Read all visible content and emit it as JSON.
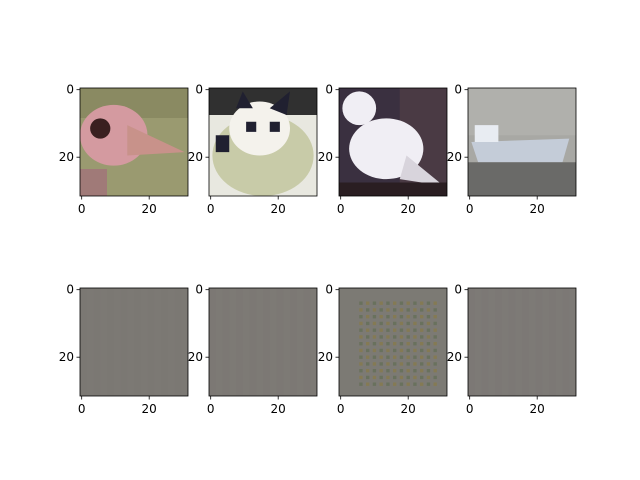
{
  "chart_data": {
    "type": "image-grid",
    "rows": 2,
    "cols": 4,
    "x_ticks": [
      0,
      20
    ],
    "y_ticks": [
      0,
      20
    ],
    "xlim": [
      -0.5,
      31.5
    ],
    "ylim": [
      31.5,
      -0.5
    ],
    "panels": [
      {
        "subject": "ostrich-head",
        "palette": {
          "bg": "#9a9a70",
          "main": "#d49aa0",
          "dark": "#3a2020",
          "light": "#c8c8b0"
        }
      },
      {
        "subject": "cat-face",
        "palette": {
          "bg": "#e8e8e0",
          "main": "#f4f2ec",
          "dark": "#202030",
          "light": "#c8cba8"
        }
      },
      {
        "subject": "white-bird",
        "palette": {
          "bg": "#3a3040",
          "main": "#f0eef4",
          "dark": "#2a1e22",
          "light": "#d8d4dc"
        }
      },
      {
        "subject": "boat",
        "palette": {
          "bg": "#a8a8a4",
          "main": "#c4ccd8",
          "dark": "#6a6a68",
          "light": "#e8ecf2"
        }
      },
      {
        "subject": "gray-flat",
        "palette": {
          "bg": "#7c7974",
          "main": "#7a7772",
          "dark": "#77746f",
          "light": "#807d78"
        }
      },
      {
        "subject": "gray-flat",
        "palette": {
          "bg": "#7d7a75",
          "main": "#7b7873",
          "dark": "#787570",
          "light": "#817e79"
        }
      },
      {
        "subject": "gray-dotted",
        "palette": {
          "bg": "#7c7a74",
          "main": "#8a7a3a",
          "dark": "#5a6a4a",
          "light": "#847f70"
        }
      },
      {
        "subject": "gray-flat",
        "palette": {
          "bg": "#7d7a76",
          "main": "#7b7874",
          "dark": "#787571",
          "light": "#817e7a"
        }
      }
    ]
  }
}
